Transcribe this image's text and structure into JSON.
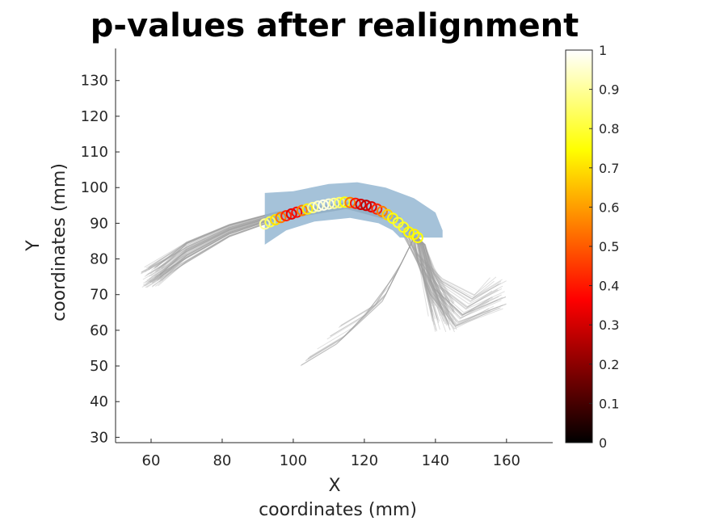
{
  "chart_data": {
    "type": "scatter",
    "title": "p-values after realignment",
    "xlabel": [
      "X",
      "coordinates (mm)"
    ],
    "ylabel": [
      "Y",
      "coordinates (mm)"
    ],
    "xlim": [
      50,
      173
    ],
    "ylim": [
      28.5,
      139
    ],
    "xticks": [
      "60",
      "80",
      "100",
      "120",
      "140",
      "160"
    ],
    "yticks": [
      "30",
      "40",
      "50",
      "60",
      "70",
      "80",
      "90",
      "100",
      "110",
      "120",
      "130"
    ],
    "colorbar": {
      "colormap": "hot",
      "range": [
        0,
        1
      ],
      "ticks": [
        "0",
        "0.1",
        "0.2",
        "0.3",
        "0.4",
        "0.5",
        "0.6",
        "0.7",
        "0.8",
        "0.9",
        "1"
      ]
    },
    "points": [
      {
        "x": 92,
        "y": 89.8,
        "p": 0.9
      },
      {
        "x": 93.5,
        "y": 90.4,
        "p": 0.82
      },
      {
        "x": 95,
        "y": 91.0,
        "p": 0.7
      },
      {
        "x": 96.5,
        "y": 91.6,
        "p": 0.55
      },
      {
        "x": 98,
        "y": 92.1,
        "p": 0.42
      },
      {
        "x": 99.5,
        "y": 92.6,
        "p": 0.33
      },
      {
        "x": 101,
        "y": 93.1,
        "p": 0.38
      },
      {
        "x": 102.5,
        "y": 93.6,
        "p": 0.55
      },
      {
        "x": 104,
        "y": 94.0,
        "p": 0.72
      },
      {
        "x": 105.5,
        "y": 94.4,
        "p": 0.88
      },
      {
        "x": 107,
        "y": 94.8,
        "p": 0.95
      },
      {
        "x": 108.5,
        "y": 95.1,
        "p": 0.98
      },
      {
        "x": 110,
        "y": 95.4,
        "p": 0.96
      },
      {
        "x": 111.5,
        "y": 95.6,
        "p": 0.9
      },
      {
        "x": 113,
        "y": 95.8,
        "p": 0.85
      },
      {
        "x": 114.5,
        "y": 95.9,
        "p": 0.75
      },
      {
        "x": 116,
        "y": 95.8,
        "p": 0.55
      },
      {
        "x": 117.5,
        "y": 95.6,
        "p": 0.4
      },
      {
        "x": 119,
        "y": 95.3,
        "p": 0.3
      },
      {
        "x": 120.5,
        "y": 95.0,
        "p": 0.28
      },
      {
        "x": 122,
        "y": 94.6,
        "p": 0.32
      },
      {
        "x": 123.5,
        "y": 94.0,
        "p": 0.42
      },
      {
        "x": 125,
        "y": 93.3,
        "p": 0.55
      },
      {
        "x": 126.5,
        "y": 92.4,
        "p": 0.68
      },
      {
        "x": 128,
        "y": 91.4,
        "p": 0.76
      },
      {
        "x": 129.5,
        "y": 90.2,
        "p": 0.8
      },
      {
        "x": 131,
        "y": 88.9,
        "p": 0.78
      },
      {
        "x": 132.5,
        "y": 87.5,
        "p": 0.74
      },
      {
        "x": 134,
        "y": 86.9,
        "p": 0.72
      },
      {
        "x": 135,
        "y": 86.0,
        "p": 0.75
      }
    ]
  }
}
